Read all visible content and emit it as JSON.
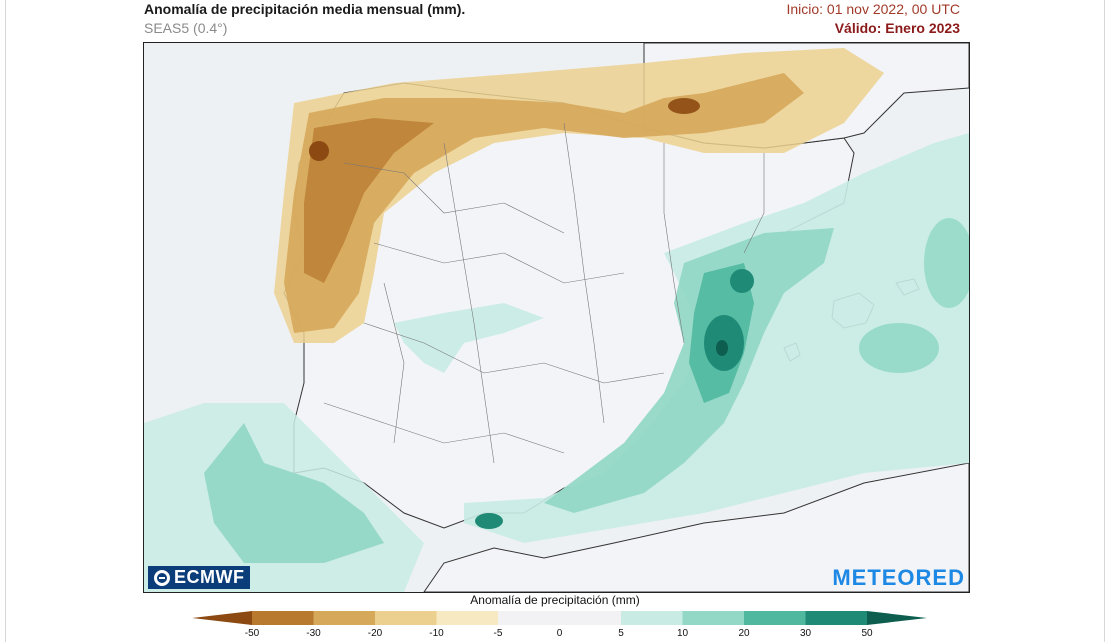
{
  "header": {
    "title": "Anomalía de precipitación media mensual (mm).",
    "subtitle": "SEAS5 (0.4°)",
    "run": "Inicio: 01 nov 2022, 00 UTC",
    "valid": "Válido: Enero 2023"
  },
  "map": {
    "region": "Península Ibérica y Baleares",
    "colors": {
      "sea": "#eef1f4",
      "land": "#f2f3f6",
      "border": "#555555"
    }
  },
  "logos": {
    "left": "ECMWF",
    "right": "METEORED"
  },
  "legend": {
    "title": "Anomalía de precipitación (mm)",
    "ticks": [
      "-50",
      "-30",
      "-20",
      "-10",
      "-5",
      "0",
      "5",
      "10",
      "20",
      "30",
      "50"
    ],
    "colors": [
      "#8c4a12",
      "#b77a2f",
      "#d6a85a",
      "#ecd08f",
      "#f7eac3",
      "#f2f2f4",
      "#f2f2f4",
      "#c8ece4",
      "#93d8c6",
      "#4fb89f",
      "#1f8a76",
      "#0e5e50"
    ]
  }
}
